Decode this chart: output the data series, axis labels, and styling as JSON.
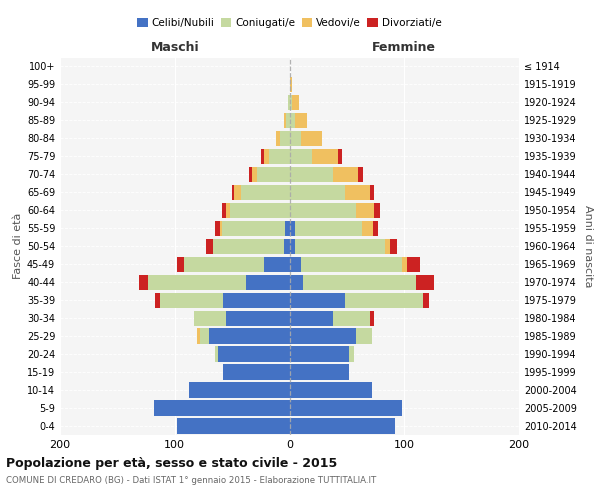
{
  "age_groups": [
    "0-4",
    "5-9",
    "10-14",
    "15-19",
    "20-24",
    "25-29",
    "30-34",
    "35-39",
    "40-44",
    "45-49",
    "50-54",
    "55-59",
    "60-64",
    "65-69",
    "70-74",
    "75-79",
    "80-84",
    "85-89",
    "90-94",
    "95-99",
    "100+"
  ],
  "birth_years": [
    "2010-2014",
    "2005-2009",
    "2000-2004",
    "1995-1999",
    "1990-1994",
    "1985-1989",
    "1980-1984",
    "1975-1979",
    "1970-1974",
    "1965-1969",
    "1960-1964",
    "1955-1959",
    "1950-1954",
    "1945-1949",
    "1940-1944",
    "1935-1939",
    "1930-1934",
    "1925-1929",
    "1920-1924",
    "1915-1919",
    "≤ 1914"
  ],
  "males": {
    "celibi": [
      98,
      118,
      88,
      58,
      62,
      70,
      55,
      58,
      38,
      22,
      5,
      4,
      0,
      0,
      0,
      0,
      0,
      0,
      0,
      0,
      0
    ],
    "coniugati": [
      0,
      0,
      0,
      0,
      3,
      8,
      28,
      55,
      85,
      70,
      62,
      55,
      52,
      42,
      28,
      18,
      8,
      3,
      1,
      0,
      0
    ],
    "vedovi": [
      0,
      0,
      0,
      0,
      0,
      3,
      0,
      0,
      0,
      0,
      0,
      2,
      3,
      6,
      5,
      4,
      4,
      2,
      0,
      0,
      0
    ],
    "divorziati": [
      0,
      0,
      0,
      0,
      0,
      0,
      0,
      4,
      8,
      6,
      6,
      4,
      4,
      2,
      2,
      3,
      0,
      0,
      0,
      0,
      0
    ]
  },
  "females": {
    "nubili": [
      92,
      98,
      72,
      52,
      52,
      58,
      38,
      48,
      12,
      10,
      5,
      5,
      0,
      0,
      0,
      0,
      0,
      0,
      0,
      0,
      0
    ],
    "coniugate": [
      0,
      0,
      0,
      0,
      4,
      14,
      32,
      68,
      98,
      88,
      78,
      58,
      58,
      48,
      38,
      20,
      10,
      5,
      2,
      0,
      0
    ],
    "vedove": [
      0,
      0,
      0,
      0,
      0,
      0,
      0,
      0,
      0,
      4,
      5,
      10,
      16,
      22,
      22,
      22,
      18,
      10,
      6,
      2,
      0
    ],
    "divorziate": [
      0,
      0,
      0,
      0,
      0,
      0,
      4,
      6,
      16,
      12,
      6,
      4,
      5,
      4,
      4,
      4,
      0,
      0,
      0,
      0,
      0
    ]
  },
  "colors": {
    "celibi": "#4472c4",
    "coniugati": "#c5d9a0",
    "vedovi": "#f0c060",
    "divorziati": "#cc2222"
  },
  "legend_labels": [
    "Celibi/Nubili",
    "Coniugati/e",
    "Vedovi/e",
    "Divorziati/e"
  ],
  "title_main": "Popolazione per età, sesso e stato civile - 2015",
  "title_sub": "COMUNE DI CREDARO (BG) - Dati ISTAT 1° gennaio 2015 - Elaborazione TUTTITALIA.IT",
  "xlabel_left": "Maschi",
  "xlabel_right": "Femmine",
  "ylabel_left": "Fasce di età",
  "ylabel_right": "Anni di nascita",
  "xlim": 200,
  "background_color": "#f5f5f5",
  "bar_height": 0.85
}
